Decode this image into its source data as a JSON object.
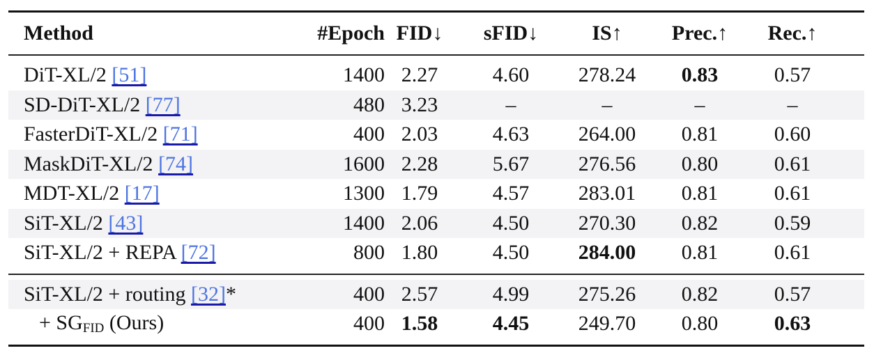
{
  "header": [
    "Method",
    "#Epoch",
    "FID↓",
    "sFID↓",
    "IS↑",
    "Prec.↑",
    "Rec.↑"
  ],
  "rows": [
    {
      "method": "DiT-XL/2",
      "cite": "[51]",
      "suffix": "",
      "epoch": "1400",
      "fid": "2.27",
      "sfid": "4.60",
      "is": "278.24",
      "prec": "0.83",
      "rec": "0.57",
      "bold": [
        "prec"
      ]
    },
    {
      "method": "SD-DiT-XL/2",
      "cite": "[77]",
      "suffix": "",
      "epoch": "480",
      "fid": "3.23",
      "sfid": "–",
      "is": "–",
      "prec": "–",
      "rec": "–",
      "bold": []
    },
    {
      "method": "FasterDiT-XL/2",
      "cite": "[71]",
      "suffix": "",
      "epoch": "400",
      "fid": "2.03",
      "sfid": "4.63",
      "is": "264.00",
      "prec": "0.81",
      "rec": "0.60",
      "bold": []
    },
    {
      "method": "MaskDiT-XL/2",
      "cite": "[74]",
      "suffix": "",
      "epoch": "1600",
      "fid": "2.28",
      "sfid": "5.67",
      "is": "276.56",
      "prec": "0.80",
      "rec": "0.61",
      "bold": []
    },
    {
      "method": "MDT-XL/2",
      "cite": "[17]",
      "suffix": "",
      "epoch": "1300",
      "fid": "1.79",
      "sfid": "4.57",
      "is": "283.01",
      "prec": "0.81",
      "rec": "0.61",
      "bold": []
    },
    {
      "method": "SiT-XL/2",
      "cite": "[43]",
      "suffix": "",
      "epoch": "1400",
      "fid": "2.06",
      "sfid": "4.50",
      "is": "270.30",
      "prec": "0.82",
      "rec": "0.59",
      "bold": []
    },
    {
      "method": "SiT-XL/2 + REPA",
      "cite": "[72]",
      "suffix": "",
      "epoch": "800",
      "fid": "1.80",
      "sfid": "4.50",
      "is": "284.00",
      "prec": "0.81",
      "rec": "0.61",
      "bold": [
        "is"
      ]
    },
    {
      "method": "SiT-XL/2 + routing",
      "cite": "[32]",
      "suffix": "*",
      "epoch": "400",
      "fid": "2.57",
      "sfid": "4.99",
      "is": "275.26",
      "prec": "0.82",
      "rec": "0.57",
      "bold": []
    }
  ],
  "ours": {
    "prefix": "+ SG",
    "sub": "FID",
    "suffix": " (Ours)",
    "epoch": "400",
    "fid": "1.58",
    "sfid": "4.45",
    "is": "249.70",
    "prec": "0.80",
    "rec": "0.63",
    "bold": [
      "fid",
      "sfid",
      "rec"
    ]
  }
}
